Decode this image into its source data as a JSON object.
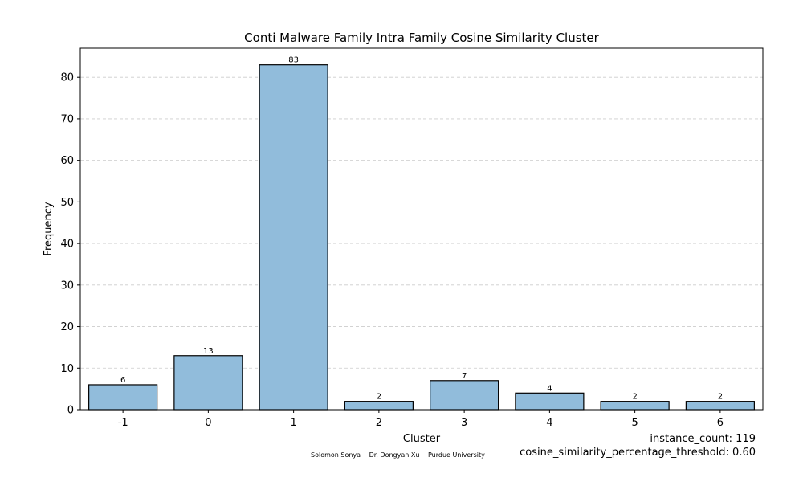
{
  "chart_data": {
    "type": "bar",
    "title": "Conti Malware Family Intra Family Cosine Similarity Cluster",
    "xlabel": "Cluster",
    "ylabel": "Frequency",
    "categories": [
      "-1",
      "0",
      "1",
      "2",
      "3",
      "4",
      "5",
      "6"
    ],
    "values": [
      6,
      13,
      83,
      2,
      7,
      4,
      2,
      2
    ],
    "ylim": [
      0,
      87
    ],
    "yticks": [
      0,
      10,
      20,
      30,
      40,
      50,
      60,
      70,
      80
    ],
    "grid": "y-dashed",
    "bar_color": "#91bcdb",
    "bar_edge_color": "#000000"
  },
  "credits": [
    "Solomon Sonya",
    "Dr. Dongyan Xu",
    "Purdue University"
  ],
  "stats": {
    "instance_count": "instance_count: 119",
    "threshold": "cosine_similarity_percentage_threshold: 0.60"
  }
}
